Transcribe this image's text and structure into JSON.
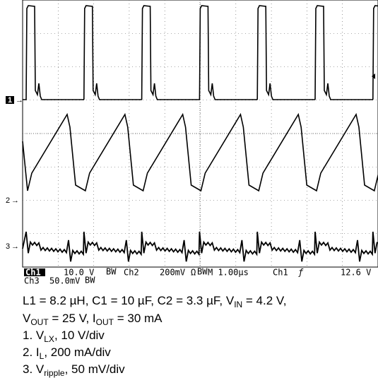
{
  "scope": {
    "markers": [
      "1",
      "2",
      "3"
    ],
    "status": {
      "line1": [
        "Ch1",
        "10.0 V",
        "BW",
        "Ch2",
        "200mV",
        "Ω",
        "BW",
        "M 1.00µs",
        "Ch1",
        "ƒ",
        "12.6 V"
      ],
      "line2": [
        "Ch3",
        "50.0mV",
        "BW"
      ]
    }
  },
  "caption": [
    [
      {
        "t": "L1 = 8.2 µH, C1 = 10 µF, C2 = 3.3 µF, V"
      },
      {
        "sub": "IN"
      },
      {
        "t": " = 4.2 V,"
      }
    ],
    [
      {
        "t": "V"
      },
      {
        "sub": "OUT"
      },
      {
        "t": " = 25 V, I"
      },
      {
        "sub": "OUT"
      },
      {
        "t": " = 30 mA"
      }
    ],
    [
      {
        "t": "1. V"
      },
      {
        "sub": "LX"
      },
      {
        "t": ", 10 V/div"
      }
    ],
    [
      {
        "t": "2. I"
      },
      {
        "sub": "L"
      },
      {
        "t": ", 200 mA/div"
      }
    ],
    [
      {
        "t": "3. V"
      },
      {
        "sub": "ripple"
      },
      {
        "t": ", 50 mV/div"
      }
    ]
  ]
}
